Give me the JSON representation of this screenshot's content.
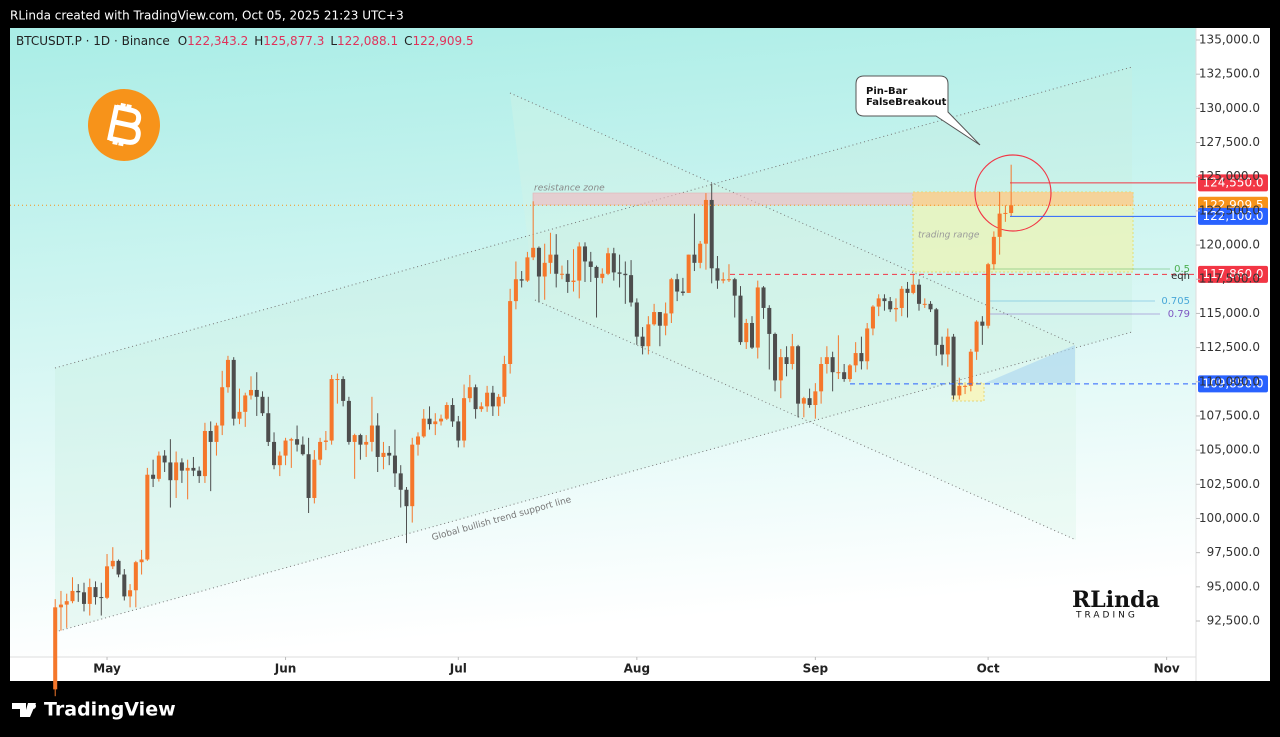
{
  "header": "RLinda created with TradingView.com, Oct 05, 2025 21:23 UTC+3",
  "footer": "TradingView",
  "watermark": [
    "RLinda",
    "TRADING"
  ],
  "chart_data": {
    "type": "candlestick",
    "symbol": "BTCUSDT.P · 1D · Binance",
    "ohlc_keys": [
      "O",
      "H",
      "L",
      "C"
    ],
    "last_labels": [
      "122,343.2",
      "125,877.3",
      "122,088.1",
      "122,909.5"
    ],
    "up_color": "#f5772b",
    "down_color": "#4d4d4d",
    "candles": [
      [
        87500,
        94100,
        87000,
        93500
      ],
      [
        93500,
        94700,
        91800,
        93700
      ],
      [
        93700,
        94500,
        92000,
        93950
      ],
      [
        93950,
        95700,
        93800,
        94700
      ],
      [
        94700,
        95200,
        93900,
        94600
      ],
      [
        94600,
        95300,
        93200,
        93750
      ],
      [
        93750,
        95600,
        92900,
        94980
      ],
      [
        94980,
        95400,
        93700,
        94250
      ],
      [
        94250,
        95300,
        92900,
        94200
      ],
      [
        94200,
        97400,
        94100,
        96500
      ],
      [
        96500,
        97900,
        96300,
        96900
      ],
      [
        96900,
        97000,
        95700,
        95900
      ],
      [
        95900,
        96300,
        94000,
        94300
      ],
      [
        94300,
        95200,
        93500,
        94750
      ],
      [
        94750,
        96900,
        93500,
        96800
      ],
      [
        96800,
        97700,
        95900,
        97000
      ],
      [
        97000,
        103700,
        96900,
        103200
      ],
      [
        103200,
        104300,
        102300,
        102900
      ],
      [
        102900,
        104900,
        102700,
        104600
      ],
      [
        104600,
        105000,
        103400,
        104100
      ],
      [
        104100,
        105800,
        100800,
        102800
      ],
      [
        102800,
        104900,
        101500,
        104100
      ],
      [
        104100,
        104400,
        102600,
        103500
      ],
      [
        103500,
        104300,
        101400,
        103700
      ],
      [
        103700,
        104500,
        103100,
        103500
      ],
      [
        103500,
        103800,
        102600,
        103100
      ],
      [
        103100,
        107000,
        102600,
        106400
      ],
      [
        106400,
        107100,
        102000,
        105600
      ],
      [
        105600,
        107000,
        104600,
        106800
      ],
      [
        106800,
        110800,
        106100,
        109600
      ],
      [
        109600,
        111900,
        109200,
        111600
      ],
      [
        111600,
        111800,
        106800,
        107300
      ],
      [
        107300,
        109500,
        106900,
        107800
      ],
      [
        107800,
        109200,
        106700,
        109000
      ],
      [
        109000,
        110400,
        108700,
        109400
      ],
      [
        109400,
        110700,
        107500,
        108900
      ],
      [
        108900,
        109300,
        107500,
        107700
      ],
      [
        107700,
        108900,
        105300,
        105600
      ],
      [
        105600,
        106300,
        103600,
        103900
      ],
      [
        103900,
        104900,
        103100,
        104600
      ],
      [
        104600,
        105900,
        103900,
        105700
      ],
      [
        105700,
        105900,
        103700,
        105800
      ],
      [
        105800,
        106800,
        104900,
        105400
      ],
      [
        105400,
        106000,
        104600,
        104700
      ],
      [
        104700,
        105900,
        100400,
        101500
      ],
      [
        101500,
        105000,
        101100,
        104300
      ],
      [
        104300,
        105900,
        103900,
        105600
      ],
      [
        105600,
        106400,
        105000,
        105700
      ],
      [
        105700,
        110500,
        105400,
        110200
      ],
      [
        110200,
        110600,
        108400,
        110200
      ],
      [
        110200,
        110400,
        108200,
        108600
      ],
      [
        108600,
        108900,
        105400,
        105600
      ],
      [
        105600,
        106200,
        102900,
        106100
      ],
      [
        106100,
        106200,
        104300,
        105400
      ],
      [
        105400,
        106100,
        104500,
        105600
      ],
      [
        105600,
        108900,
        104900,
        106800
      ],
      [
        106800,
        107700,
        103400,
        104500
      ],
      [
        104500,
        105600,
        103600,
        104800
      ],
      [
        104800,
        105300,
        103900,
        104600
      ],
      [
        104600,
        106500,
        102300,
        103300
      ],
      [
        103300,
        103900,
        100800,
        102100
      ],
      [
        102100,
        102300,
        98200,
        100900
      ],
      [
        100900,
        105900,
        99700,
        105400
      ],
      [
        105400,
        106300,
        104600,
        106000
      ],
      [
        106000,
        108000,
        105900,
        107300
      ],
      [
        107300,
        108200,
        106500,
        106900
      ],
      [
        106900,
        107700,
        106100,
        107100
      ],
      [
        107100,
        107600,
        106800,
        107300
      ],
      [
        107300,
        108500,
        107200,
        108300
      ],
      [
        108300,
        108800,
        106700,
        107100
      ],
      [
        107100,
        107500,
        105200,
        105700
      ],
      [
        105700,
        109800,
        105200,
        108800
      ],
      [
        108800,
        110500,
        108500,
        109600
      ],
      [
        109600,
        109800,
        107300,
        108000
      ],
      [
        108000,
        108500,
        107800,
        108200
      ],
      [
        108200,
        109700,
        107800,
        109200
      ],
      [
        109200,
        109700,
        107500,
        108200
      ],
      [
        108200,
        109100,
        107500,
        108900
      ],
      [
        108900,
        111900,
        108400,
        111300
      ],
      [
        111300,
        116800,
        110600,
        115900
      ],
      [
        115900,
        118800,
        115300,
        117500
      ],
      [
        117500,
        118100,
        116900,
        117400
      ],
      [
        117400,
        119500,
        117300,
        119100
      ],
      [
        119100,
        123200,
        118900,
        119800
      ],
      [
        119800,
        119900,
        115800,
        117700
      ],
      [
        117700,
        120100,
        116000,
        118700
      ],
      [
        118700,
        120900,
        117900,
        119300
      ],
      [
        119300,
        120800,
        116900,
        117900
      ],
      [
        117900,
        118500,
        117500,
        117900
      ],
      [
        117900,
        118900,
        116500,
        117300
      ],
      [
        117300,
        119700,
        116600,
        117400
      ],
      [
        117400,
        120200,
        116100,
        119900
      ],
      [
        119900,
        120200,
        117300,
        118800
      ],
      [
        118800,
        119500,
        117300,
        118400
      ],
      [
        118400,
        118500,
        114700,
        117600
      ],
      [
        117600,
        118300,
        117200,
        117900
      ],
      [
        117900,
        119800,
        117800,
        119400
      ],
      [
        119400,
        119800,
        117400,
        118000
      ],
      [
        118000,
        119300,
        116900,
        117900
      ],
      [
        117900,
        118800,
        115700,
        117800
      ],
      [
        117800,
        118900,
        115500,
        115800
      ],
      [
        115800,
        116100,
        112700,
        113300
      ],
      [
        113300,
        114000,
        112000,
        112600
      ],
      [
        112600,
        114800,
        112000,
        114200
      ],
      [
        114200,
        115700,
        114100,
        115100
      ],
      [
        115100,
        115100,
        112600,
        114100
      ],
      [
        114100,
        115800,
        113400,
        115000
      ],
      [
        115000,
        117600,
        114300,
        117500
      ],
      [
        117500,
        117900,
        115900,
        116600
      ],
      [
        116600,
        117600,
        116300,
        116500
      ],
      [
        116500,
        119300,
        116500,
        119300
      ],
      [
        119300,
        122300,
        118100,
        118700
      ],
      [
        118700,
        120300,
        118300,
        120100
      ],
      [
        120100,
        123800,
        118200,
        123300
      ],
      [
        123300,
        124500,
        117200,
        118300
      ],
      [
        118300,
        119200,
        116800,
        117400
      ],
      [
        117400,
        118000,
        117200,
        117500
      ],
      [
        117500,
        118600,
        117300,
        117500
      ],
      [
        117500,
        117600,
        114700,
        116300
      ],
      [
        116300,
        117000,
        112700,
        112900
      ],
      [
        112900,
        114600,
        112400,
        114300
      ],
      [
        114300,
        114800,
        112400,
        112500
      ],
      [
        112500,
        117400,
        111700,
        116900
      ],
      [
        116900,
        117000,
        114600,
        115400
      ],
      [
        115400,
        115600,
        110900,
        113500
      ],
      [
        113500,
        113600,
        109300,
        110100
      ],
      [
        110100,
        112400,
        108800,
        111800
      ],
      [
        111800,
        112600,
        110400,
        111300
      ],
      [
        111300,
        113500,
        110900,
        112600
      ],
      [
        112600,
        112700,
        107400,
        108400
      ],
      [
        108400,
        108900,
        107400,
        108800
      ],
      [
        108800,
        109500,
        108100,
        108300
      ],
      [
        108300,
        109900,
        107300,
        109300
      ],
      [
        109300,
        111800,
        108400,
        111300
      ],
      [
        111300,
        112600,
        110600,
        111800
      ],
      [
        111800,
        112200,
        109300,
        110700
      ],
      [
        110700,
        113400,
        110200,
        110700
      ],
      [
        110700,
        111300,
        110000,
        110200
      ],
      [
        110200,
        111300,
        110000,
        111200
      ],
      [
        111200,
        112900,
        110700,
        112100
      ],
      [
        112100,
        113300,
        110900,
        111500
      ],
      [
        111500,
        114300,
        110900,
        113900
      ],
      [
        113900,
        115600,
        113400,
        115500
      ],
      [
        115500,
        116400,
        114800,
        116100
      ],
      [
        116100,
        116400,
        115200,
        115900
      ],
      [
        115900,
        116200,
        115100,
        115300
      ],
      [
        115300,
        116100,
        114400,
        115400
      ],
      [
        115400,
        117000,
        114800,
        116800
      ],
      [
        116800,
        117300,
        114700,
        116500
      ],
      [
        116500,
        117900,
        116400,
        117100
      ],
      [
        117100,
        117500,
        115200,
        115700
      ],
      [
        115700,
        116100,
        115400,
        115700
      ],
      [
        115700,
        115900,
        115100,
        115300
      ],
      [
        115300,
        115400,
        111900,
        112700
      ],
      [
        112700,
        113300,
        111200,
        112000
      ],
      [
        112000,
        113900,
        111100,
        113300
      ],
      [
        113300,
        113500,
        108700,
        109000
      ],
      [
        109000,
        110300,
        108700,
        109700
      ],
      [
        109700,
        109800,
        109100,
        109700
      ],
      [
        109700,
        112400,
        109300,
        112200
      ],
      [
        112200,
        114500,
        111600,
        114400
      ],
      [
        114400,
        114800,
        112700,
        114100
      ],
      [
        114100,
        118700,
        113900,
        118600
      ],
      [
        118600,
        121000,
        118200,
        120600
      ],
      [
        120600,
        123900,
        119300,
        122300
      ],
      [
        122300,
        122900,
        121700,
        122350
      ],
      [
        122343.2,
        125877.3,
        122088.1,
        122909.5
      ]
    ],
    "xlim": [
      -7.85,
      198.1
    ],
    "xticks": [
      {
        "value": 9,
        "label": "May"
      },
      {
        "value": 40,
        "label": "Jun"
      },
      {
        "value": 70,
        "label": "Jul"
      },
      {
        "value": 101,
        "label": "Aug"
      },
      {
        "value": 132,
        "label": "Sep"
      },
      {
        "value": 162,
        "label": "Oct"
      },
      {
        "value": 193,
        "label": "Nov"
      }
    ],
    "ylim": [
      89867,
      135878
    ],
    "yticks": [
      {
        "value": 92500,
        "label": "92,500.0"
      },
      {
        "value": 95000,
        "label": "95,000.0"
      },
      {
        "value": 97500,
        "label": "97,500.0"
      },
      {
        "value": 100000,
        "label": "100,000.0"
      },
      {
        "value": 102500,
        "label": "102,500.0"
      },
      {
        "value": 105000,
        "label": "105,000.0"
      },
      {
        "value": 107500,
        "label": "107,500.0"
      },
      {
        "value": 110000,
        "label": "110,000.0"
      },
      {
        "value": 112500,
        "label": "112,500.0"
      },
      {
        "value": 115000,
        "label": "115,000.0"
      },
      {
        "value": 117500,
        "label": "117,500.0"
      },
      {
        "value": 120000,
        "label": "120,000.0"
      },
      {
        "value": 122500,
        "label": "122,500.0"
      },
      {
        "value": 125000,
        "label": "125,000.0"
      },
      {
        "value": 127500,
        "label": "127,500.0"
      },
      {
        "value": 130000,
        "label": "130,000.0"
      },
      {
        "value": 132500,
        "label": "132,500.0"
      },
      {
        "value": 135000,
        "label": "135,000.0"
      }
    ],
    "grid": false,
    "levels": [
      {
        "value": 124550,
        "label": "124,550.0",
        "color": "#f23645",
        "style": "solid"
      },
      {
        "value": 122909.5,
        "label": "122,909.5",
        "color": "#f7931a",
        "style": "dotted"
      },
      {
        "value": 122100,
        "label": "122,100.0",
        "color": "#2962ff",
        "style": "solid"
      },
      {
        "value": 117860,
        "label": "117,860.0",
        "color": "#f23645",
        "style": "dashed"
      },
      {
        "value": 109850,
        "label": "109,850.0",
        "color": "#2962ff",
        "style": "dashed"
      }
    ],
    "fib_labels": [
      "0.5",
      "eqh",
      "0.705",
      "0.79"
    ],
    "annotations": {
      "resistance": "resistance zone",
      "range": "trading range",
      "callout": [
        "Pin-Bar",
        "FalseBreakout"
      ],
      "trend": "Global bullish trend support line"
    }
  }
}
